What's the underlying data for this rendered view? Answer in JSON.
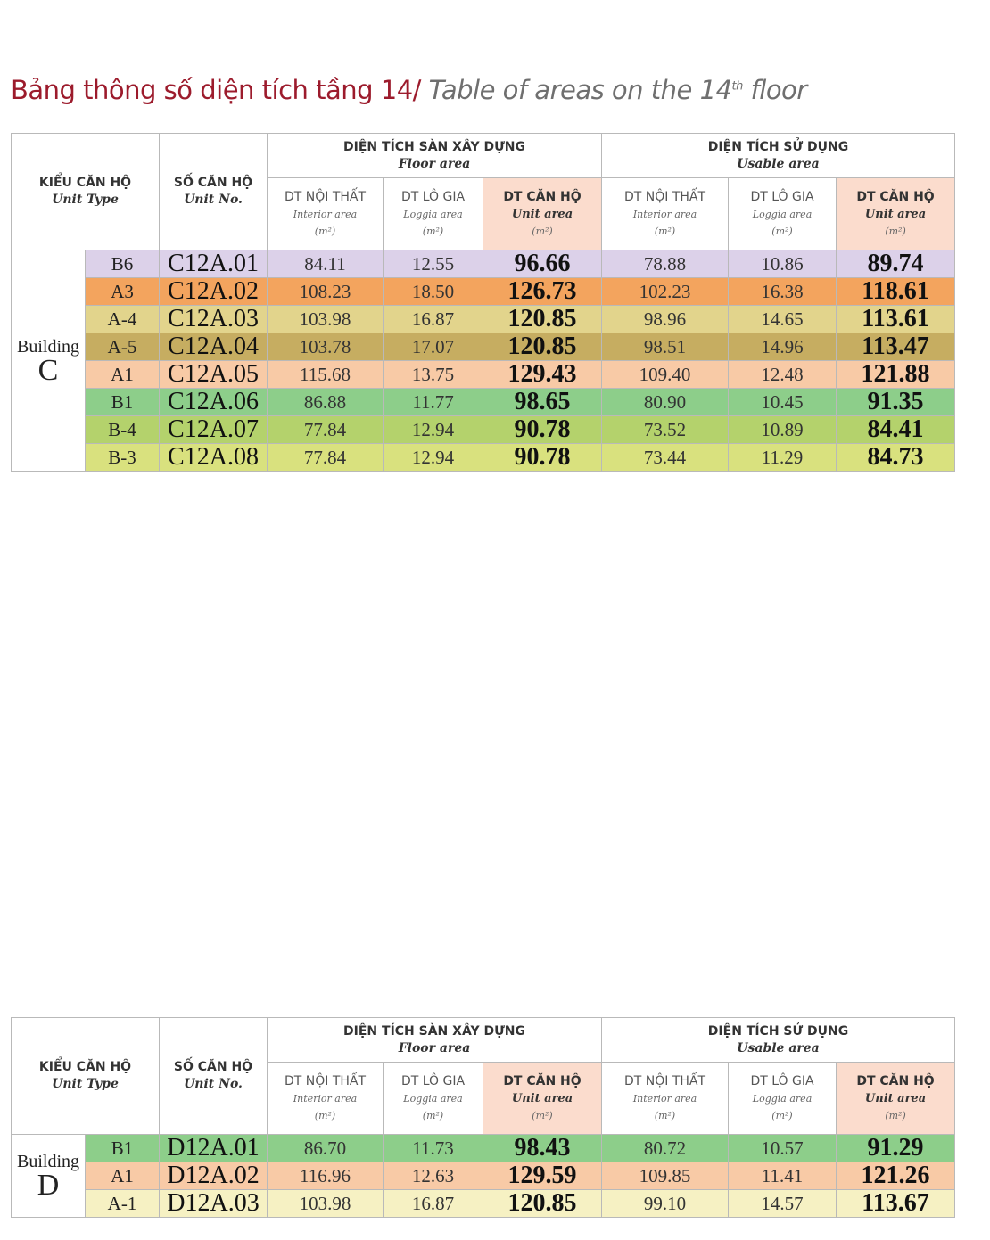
{
  "title": {
    "vn": "Bảng thông số diện tích tầng 14/",
    "en_main": "Table of areas on the 14",
    "en_sup": "th",
    "en_end": "floor"
  },
  "headers": {
    "unit_type_vn": "KIỂU CĂN HỘ",
    "unit_type_en": "Unit Type",
    "unit_no_vn": "SỐ CĂN HỘ",
    "unit_no_en": "Unit No.",
    "floor_area_vn": "DIỆN TÍCH SÀN XÂY DỰNG",
    "floor_area_en": "Floor area",
    "usable_area_vn": "DIỆN TÍCH SỬ DỤNG",
    "usable_area_en": "Usable area",
    "interior_vn": "DT NỘI THẤT",
    "interior_en": "Interior area",
    "loggia_vn": "DT LÔ GIA",
    "loggia_en": "Loggia area",
    "unit_area_vn": "DT CĂN HỘ",
    "unit_area_en": "Unit area",
    "unit_m2": "(m²)"
  },
  "building_label": "Building",
  "tables": [
    {
      "building": "C",
      "rows": [
        {
          "type": "B6",
          "unit": "C12A.01",
          "f_int": "84.11",
          "f_log": "12.55",
          "f_unit": "96.66",
          "u_int": "78.88",
          "u_log": "10.86",
          "u_unit": "89.74",
          "color": "#dcd1e9"
        },
        {
          "type": "A3",
          "unit": "C12A.02",
          "f_int": "108.23",
          "f_log": "18.50",
          "f_unit": "126.73",
          "u_int": "102.23",
          "u_log": "16.38",
          "u_unit": "118.61",
          "color": "#f3a45e"
        },
        {
          "type": "A-4",
          "unit": "C12A.03",
          "f_int": "103.98",
          "f_log": "16.87",
          "f_unit": "120.85",
          "u_int": "98.96",
          "u_log": "14.65",
          "u_unit": "113.61",
          "color": "#e2d48c"
        },
        {
          "type": "A-5",
          "unit": "C12A.04",
          "f_int": "103.78",
          "f_log": "17.07",
          "f_unit": "120.85",
          "u_int": "98.51",
          "u_log": "14.96",
          "u_unit": "113.47",
          "color": "#c6ad61"
        },
        {
          "type": "A1",
          "unit": "C12A.05",
          "f_int": "115.68",
          "f_log": "13.75",
          "f_unit": "129.43",
          "u_int": "109.40",
          "u_log": "12.48",
          "u_unit": "121.88",
          "color": "#f8caa6"
        },
        {
          "type": "B1",
          "unit": "C12A.06",
          "f_int": "86.88",
          "f_log": "11.77",
          "f_unit": "98.65",
          "u_int": "80.90",
          "u_log": "10.45",
          "u_unit": "91.35",
          "color": "#8dce8a"
        },
        {
          "type": "B-4",
          "unit": "C12A.07",
          "f_int": "77.84",
          "f_log": "12.94",
          "f_unit": "90.78",
          "u_int": "73.52",
          "u_log": "10.89",
          "u_unit": "84.41",
          "color": "#b4d26c"
        },
        {
          "type": "B-3",
          "unit": "C12A.08",
          "f_int": "77.84",
          "f_log": "12.94",
          "f_unit": "90.78",
          "u_int": "73.44",
          "u_log": "11.29",
          "u_unit": "84.73",
          "color": "#d9e17e"
        }
      ]
    },
    {
      "building": "D",
      "rows": [
        {
          "type": "B1",
          "unit": "D12A.01",
          "f_int": "86.70",
          "f_log": "11.73",
          "f_unit": "98.43",
          "u_int": "80.72",
          "u_log": "10.57",
          "u_unit": "91.29",
          "color": "#8dce8a"
        },
        {
          "type": "A1",
          "unit": "D12A.02",
          "f_int": "116.96",
          "f_log": "12.63",
          "f_unit": "129.59",
          "u_int": "109.85",
          "u_log": "11.41",
          "u_unit": "121.26",
          "color": "#f8caa6"
        },
        {
          "type": "A-1",
          "unit": "D12A.03",
          "f_int": "103.98",
          "f_log": "16.87",
          "f_unit": "120.85",
          "u_int": "99.10",
          "u_log": "14.57",
          "u_unit": "113.67",
          "color": "#f6f1c3"
        }
      ]
    }
  ]
}
